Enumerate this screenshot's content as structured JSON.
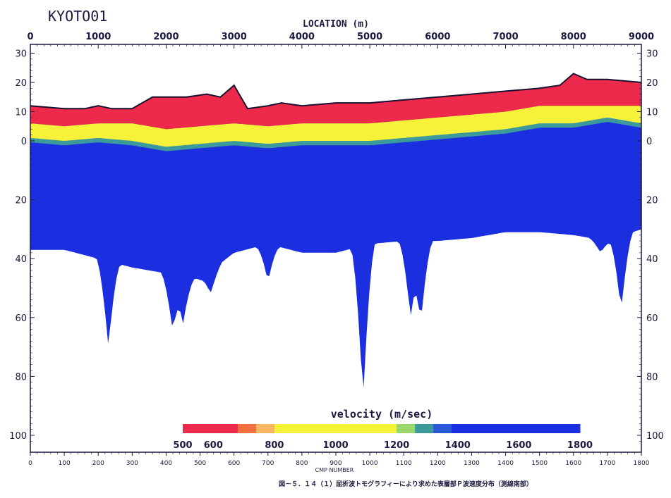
{
  "site_label": "KYOTO01",
  "caption": "図－５．１４（１）屈折波トモグラフィーにより求めた表層部Ｐ波速度分布（測線南部）",
  "chart_data": {
    "type": "heatmap",
    "title": "",
    "x_top": {
      "label": "LOCATION (m)",
      "range": [
        0,
        9000
      ],
      "ticks": [
        "0",
        "1000",
        "2000",
        "3000",
        "4000",
        "5000",
        "6000",
        "7000",
        "8000",
        "9000"
      ]
    },
    "x_bottom": {
      "label": "CMP NUMBER",
      "range": [
        0,
        1800
      ],
      "ticks": [
        "0",
        "100",
        "200",
        "300",
        "400",
        "500",
        "600",
        "700",
        "800",
        "900",
        "1000",
        "1100",
        "1200",
        "1300",
        "1400",
        "1500",
        "1600",
        "1700",
        "1800"
      ]
    },
    "y_axis": {
      "top_section": {
        "ticks": [
          "30",
          "20",
          "10",
          "0"
        ],
        "values": [
          30,
          20,
          10,
          0
        ]
      },
      "depth_section": {
        "ticks": [
          "20",
          "40",
          "60",
          "80",
          "100"
        ],
        "values": [
          20,
          40,
          60,
          80,
          100
        ]
      }
    },
    "colorbar": {
      "label": "velocity (m/sec)",
      "range": [
        500,
        1800
      ],
      "ticks": [
        "500",
        "600",
        "800",
        "1000",
        "1200",
        "1400",
        "1600",
        "1800"
      ],
      "bands": [
        {
          "from": 500,
          "to": 680,
          "color": "#ee2a4c"
        },
        {
          "from": 680,
          "to": 740,
          "color": "#f2703e"
        },
        {
          "from": 740,
          "to": 800,
          "color": "#f7b860"
        },
        {
          "from": 800,
          "to": 1200,
          "color": "#f6f23a"
        },
        {
          "from": 1200,
          "to": 1260,
          "color": "#9ad86a"
        },
        {
          "from": 1260,
          "to": 1320,
          "color": "#3c9a9c"
        },
        {
          "from": 1320,
          "to": 1380,
          "color": "#2a5ad8"
        },
        {
          "from": 1380,
          "to": 1800,
          "color": "#1c2fe0"
        }
      ]
    },
    "surface_elevation": {
      "x": [
        0,
        500,
        800,
        1000,
        1200,
        1500,
        1800,
        2300,
        2600,
        2800,
        3000,
        3200,
        3500,
        3700,
        4000,
        4500,
        5000,
        5500,
        6000,
        6500,
        7000,
        7500,
        7800,
        8000,
        8200,
        8500,
        9000
      ],
      "y": [
        12,
        11,
        11,
        12,
        11,
        11,
        15,
        15,
        16,
        15,
        19,
        11,
        12,
        13,
        12,
        13,
        13,
        14,
        15,
        16,
        17,
        18,
        19,
        23,
        21,
        21,
        20
      ]
    },
    "velocity_layers_m": {
      "x": [
        0,
        500,
        1000,
        1500,
        2000,
        2500,
        3000,
        3500,
        4000,
        4500,
        5000,
        5500,
        6000,
        6500,
        7000,
        7500,
        8000,
        8500,
        9000
      ],
      "low_velocity_base": [
        6,
        5,
        6,
        6,
        4,
        5,
        6,
        5,
        6,
        6,
        6,
        7,
        8,
        9,
        10,
        12,
        13,
        14,
        13
      ],
      "transition_base": [
        1,
        0,
        1,
        0,
        -2,
        -1,
        0,
        -1,
        0,
        0,
        0,
        1,
        2,
        3,
        4,
        6,
        6,
        8,
        6
      ],
      "model_bottom_depth": [
        37,
        37,
        40,
        43,
        45,
        47,
        38,
        35,
        38,
        38,
        35,
        34,
        34,
        33,
        31,
        31,
        32,
        34,
        30
      ],
      "deep_tongues": [
        {
          "x": 1150,
          "depth": 70
        },
        {
          "x": 2100,
          "depth": 65
        },
        {
          "x": 2250,
          "depth": 62
        },
        {
          "x": 2650,
          "depth": 52
        },
        {
          "x": 3500,
          "depth": 48
        },
        {
          "x": 4900,
          "depth": 88
        },
        {
          "x": 5600,
          "depth": 60
        },
        {
          "x": 5750,
          "depth": 62
        },
        {
          "x": 8400,
          "depth": 38
        },
        {
          "x": 8700,
          "depth": 58
        }
      ]
    }
  }
}
